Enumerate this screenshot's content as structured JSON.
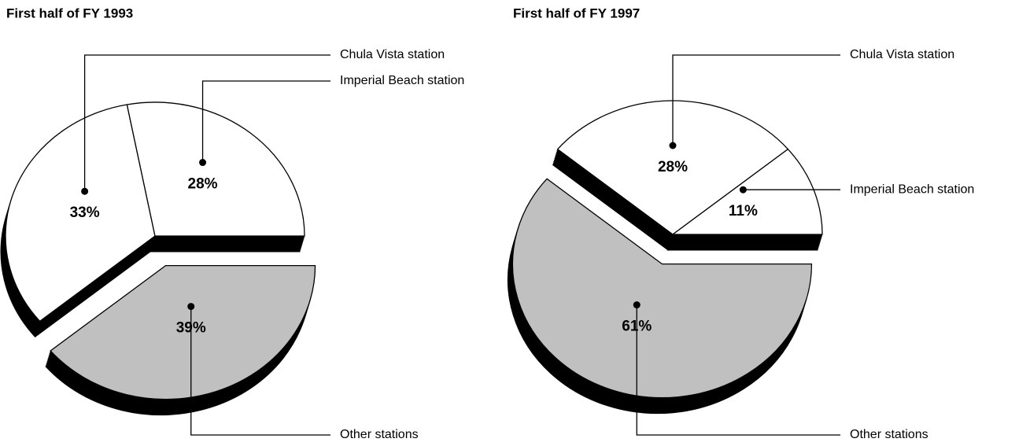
{
  "chart_data": [
    {
      "type": "pie",
      "title": "First half of FY 1993",
      "categories": [
        "Chula Vista station",
        "Imperial Beach station",
        "Other stations"
      ],
      "values": [
        33,
        28,
        39
      ],
      "value_labels": [
        "33%",
        "28%",
        "39%"
      ],
      "colors": [
        "#ffffff",
        "#ffffff",
        "#c0c0c0"
      ]
    },
    {
      "type": "pie",
      "title": "First half of FY 1997",
      "categories": [
        "Chula Vista station",
        "Imperial Beach station",
        "Other stations"
      ],
      "values": [
        28,
        11,
        61
      ],
      "value_labels": [
        "28%",
        "11%",
        "61%"
      ],
      "colors": [
        "#ffffff",
        "#ffffff",
        "#c0c0c0"
      ]
    }
  ]
}
